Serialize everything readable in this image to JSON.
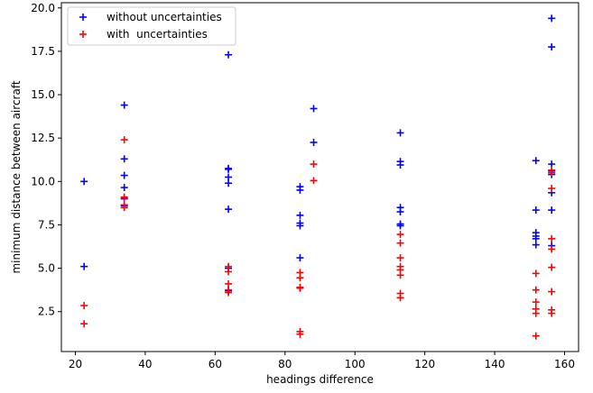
{
  "chart_data": {
    "type": "scatter",
    "title": "",
    "xlabel": "headings difference",
    "ylabel": "minimum distance between aircraft",
    "xlim": [
      16,
      164
    ],
    "ylim": [
      0.2,
      20.3
    ],
    "xticks": [
      20,
      40,
      60,
      80,
      100,
      120,
      140,
      160
    ],
    "yticks": [
      2.5,
      5.0,
      7.5,
      10.0,
      12.5,
      15.0,
      17.5,
      20.0
    ],
    "xtick_labels": [
      "20",
      "40",
      "60",
      "80",
      "100",
      "120",
      "140",
      "160"
    ],
    "ytick_labels": [
      "2.5",
      "5.0",
      "7.5",
      "10.0",
      "12.5",
      "15.0",
      "17.5",
      "20.0"
    ],
    "grid": false,
    "legend_position": "top-left",
    "marker": "+",
    "series": [
      {
        "name": "without uncertainties",
        "color": "#0000ff",
        "points": [
          [
            22.5,
            10.0
          ],
          [
            22.5,
            5.1
          ],
          [
            34.0,
            14.4
          ],
          [
            34.0,
            11.3
          ],
          [
            34.0,
            10.35
          ],
          [
            34.0,
            9.65
          ],
          [
            34.0,
            9.0
          ],
          [
            34.0,
            8.6
          ],
          [
            63.8,
            17.3
          ],
          [
            63.8,
            10.75
          ],
          [
            63.8,
            10.7
          ],
          [
            63.8,
            10.25
          ],
          [
            63.8,
            9.9
          ],
          [
            63.8,
            8.4
          ],
          [
            63.8,
            5.0
          ],
          [
            63.8,
            3.7
          ],
          [
            84.3,
            9.7
          ],
          [
            84.3,
            9.5
          ],
          [
            84.3,
            8.05
          ],
          [
            84.3,
            7.6
          ],
          [
            84.3,
            7.45
          ],
          [
            84.3,
            5.6
          ],
          [
            88.2,
            14.2
          ],
          [
            88.2,
            12.25
          ],
          [
            113.0,
            12.8
          ],
          [
            113.0,
            11.15
          ],
          [
            113.0,
            10.95
          ],
          [
            113.0,
            8.5
          ],
          [
            113.0,
            8.25
          ],
          [
            113.0,
            7.55
          ],
          [
            113.0,
            7.45
          ],
          [
            151.8,
            11.2
          ],
          [
            151.8,
            8.35
          ],
          [
            151.8,
            7.05
          ],
          [
            151.8,
            6.85
          ],
          [
            151.8,
            6.7
          ],
          [
            151.8,
            6.35
          ],
          [
            156.3,
            19.4
          ],
          [
            156.3,
            17.75
          ],
          [
            156.3,
            11.0
          ],
          [
            156.3,
            10.6
          ],
          [
            156.3,
            10.4
          ],
          [
            156.3,
            9.35
          ],
          [
            156.3,
            8.35
          ],
          [
            156.3,
            6.3
          ]
        ]
      },
      {
        "name": "with  uncertainties",
        "color": "#ff0000",
        "points": [
          [
            22.5,
            2.85
          ],
          [
            22.5,
            1.8
          ],
          [
            34.0,
            12.4
          ],
          [
            34.0,
            9.1
          ],
          [
            34.0,
            9.05
          ],
          [
            34.0,
            8.65
          ],
          [
            34.0,
            8.5
          ],
          [
            63.8,
            5.1
          ],
          [
            63.8,
            4.8
          ],
          [
            63.8,
            4.1
          ],
          [
            63.8,
            3.75
          ],
          [
            63.8,
            3.6
          ],
          [
            84.3,
            4.75
          ],
          [
            84.3,
            4.45
          ],
          [
            84.3,
            3.9
          ],
          [
            84.3,
            3.85
          ],
          [
            84.3,
            1.35
          ],
          [
            84.3,
            1.2
          ],
          [
            88.2,
            11.0
          ],
          [
            88.2,
            10.05
          ],
          [
            113.0,
            6.95
          ],
          [
            113.0,
            6.45
          ],
          [
            113.0,
            5.6
          ],
          [
            113.0,
            5.1
          ],
          [
            113.0,
            4.9
          ],
          [
            113.0,
            4.6
          ],
          [
            113.0,
            3.55
          ],
          [
            113.0,
            3.3
          ],
          [
            151.8,
            4.7
          ],
          [
            151.8,
            3.75
          ],
          [
            151.8,
            3.05
          ],
          [
            151.8,
            2.65
          ],
          [
            151.8,
            2.4
          ],
          [
            151.8,
            1.1
          ],
          [
            156.3,
            10.65
          ],
          [
            156.3,
            10.5
          ],
          [
            156.3,
            9.6
          ],
          [
            156.3,
            6.7
          ],
          [
            156.3,
            6.1
          ],
          [
            156.3,
            5.05
          ],
          [
            156.3,
            3.65
          ],
          [
            156.3,
            2.6
          ],
          [
            156.3,
            2.4
          ]
        ]
      }
    ]
  }
}
